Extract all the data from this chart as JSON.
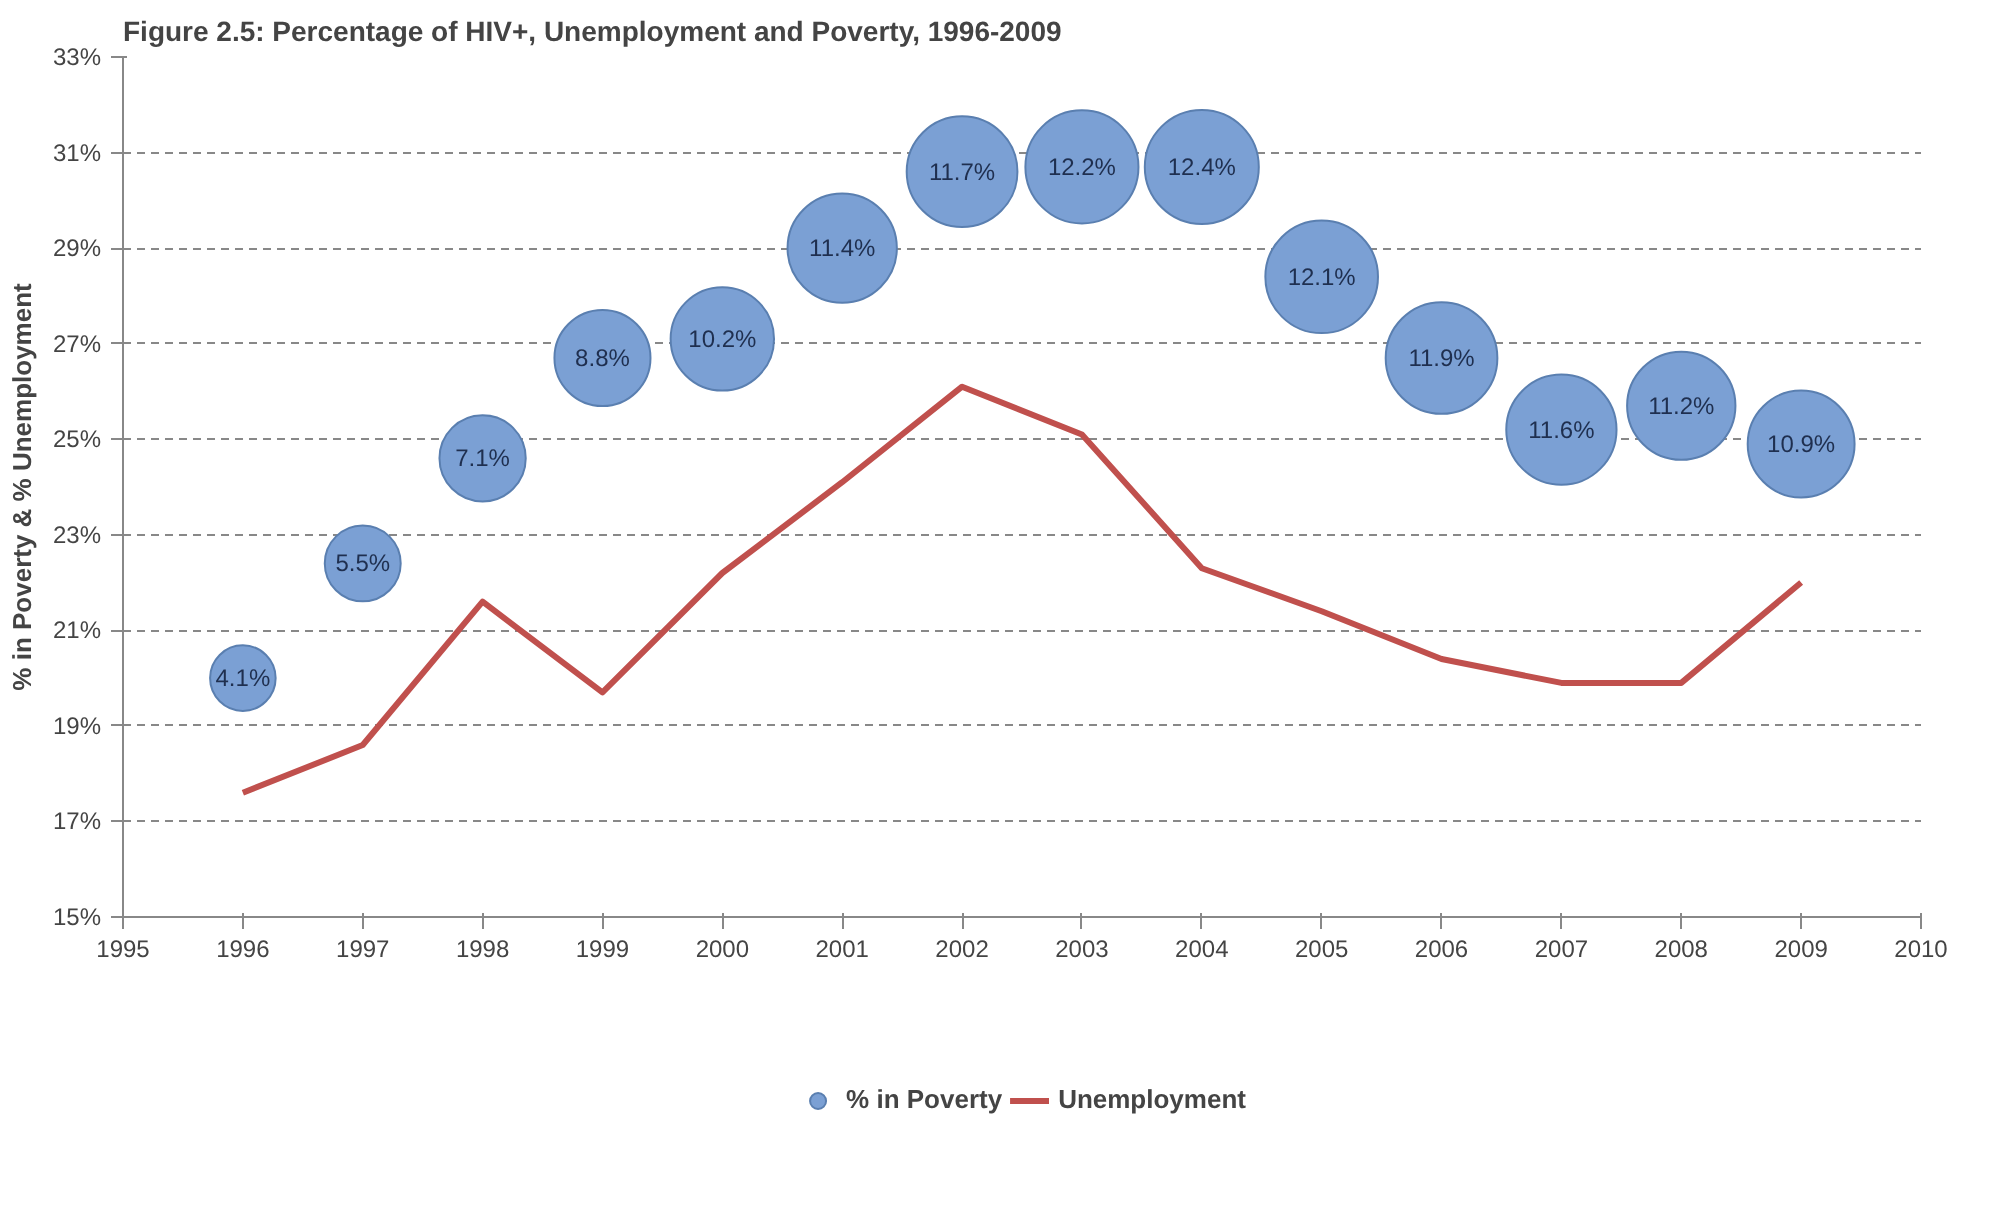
{
  "chart_data": {
    "type": "bubble",
    "title": "Figure 2.5: Percentage of HIV+, Unemployment and Poverty, 1996-2009",
    "ylabel": "% in Poverty & % Unemployment",
    "x": [
      1996,
      1997,
      1998,
      1999,
      2000,
      2001,
      2002,
      2003,
      2004,
      2005,
      2006,
      2007,
      2008,
      2009
    ],
    "series": [
      {
        "name": "% in Poverty",
        "color": "#7ba0d4",
        "values": [
          20.0,
          22.4,
          24.6,
          26.7,
          27.1,
          29.0,
          30.6,
          30.7,
          30.7,
          28.4,
          26.7,
          25.2,
          25.7,
          24.9
        ],
        "sizes": [
          4.1,
          5.5,
          7.1,
          8.8,
          10.2,
          11.4,
          11.7,
          12.2,
          12.4,
          12.1,
          11.9,
          11.6,
          11.2,
          10.9
        ],
        "value_labels": [
          "4.1%",
          "5.5%",
          "7.1%",
          "8.8%",
          "10.2%",
          "11.4%",
          "11.7%",
          "12.2%",
          "12.4%",
          "12.1%",
          "11.9%",
          "11.6%",
          "11.2%",
          "10.9%"
        ]
      },
      {
        "name": "Unemployment",
        "type": "line",
        "color": "#c0504d",
        "values": [
          17.6,
          18.6,
          21.6,
          19.7,
          22.2,
          24.1,
          26.1,
          25.1,
          22.3,
          21.4,
          20.4,
          19.9,
          19.9,
          22.0
        ]
      }
    ],
    "xlim": [
      1995,
      2010
    ],
    "xticks": [
      1995,
      1996,
      1997,
      1998,
      1999,
      2000,
      2001,
      2002,
      2003,
      2004,
      2005,
      2006,
      2007,
      2008,
      2009,
      2010
    ],
    "ylim": [
      15,
      33
    ],
    "yticks": [
      {
        "value": 15,
        "label": "15%"
      },
      {
        "value": 17,
        "label": "17%"
      },
      {
        "value": 19,
        "label": "19%"
      },
      {
        "value": 21,
        "label": "21%"
      },
      {
        "value": 23,
        "label": "23%"
      },
      {
        "value": 25,
        "label": "25%"
      },
      {
        "value": 27,
        "label": "27%"
      },
      {
        "value": 29,
        "label": "29%"
      },
      {
        "value": 31,
        "label": "31%"
      },
      {
        "value": 33,
        "label": "33%"
      }
    ],
    "grid": "y",
    "legend": "bottom"
  }
}
